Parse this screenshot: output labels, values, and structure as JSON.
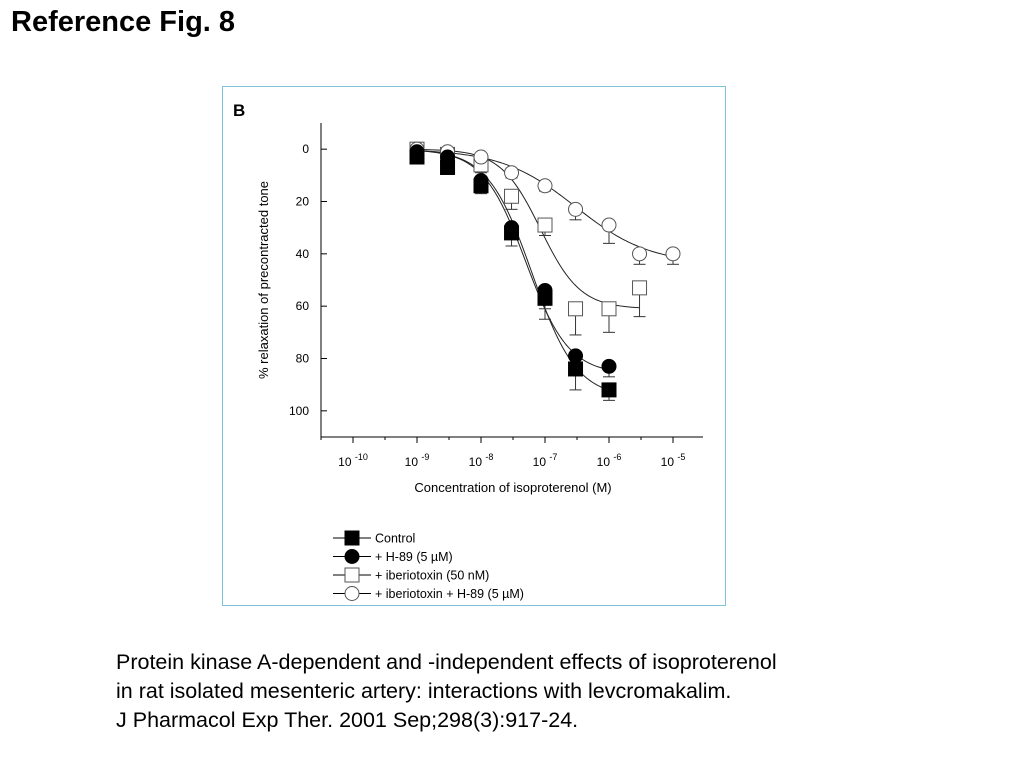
{
  "slide": {
    "title": "Reference Fig. 8",
    "caption": [
      "Protein kinase A-dependent and -independent effects of isoproterenol",
      "in rat isolated mesenteric artery: interactions with levcromakalim.",
      "J Pharmacol Exp Ther. 2001 Sep;298(3):917-24."
    ]
  },
  "chart_data": {
    "type": "line",
    "panel_label": "B",
    "title": "",
    "xlabel": "Concentration of isoproterenol (M)",
    "ylabel": "% relaxation of precontracted tone",
    "x_scale": "log",
    "xlim": [
      1e-10,
      1e-05
    ],
    "x_tick_values": [
      1e-10,
      1e-09,
      1e-08,
      1e-07,
      1e-06,
      1e-05
    ],
    "x_tick_labels": [
      {
        "base": "10",
        "exp": "-10"
      },
      {
        "base": "10",
        "exp": "-9"
      },
      {
        "base": "10",
        "exp": "-8"
      },
      {
        "base": "10",
        "exp": "-7"
      },
      {
        "base": "10",
        "exp": "-6"
      },
      {
        "base": "10",
        "exp": "-5"
      }
    ],
    "y_inverted": true,
    "ylim": [
      -10,
      110
    ],
    "y_ticks": [
      0,
      20,
      40,
      60,
      80,
      100
    ],
    "grid": false,
    "legend_position": "bottom-left",
    "series": [
      {
        "name": "Control",
        "marker": "filled-square",
        "x": [
          1e-09,
          3e-09,
          1e-08,
          3e-08,
          1e-07,
          3e-07,
          1e-06
        ],
        "y": [
          3,
          7,
          14,
          32,
          57,
          84,
          92
        ],
        "err": [
          0,
          2,
          3,
          5,
          8,
          8,
          4
        ],
        "fit": {
          "bottom": 0,
          "top": 95,
          "ec50": 6.3e-08,
          "hill": 1.25
        }
      },
      {
        "name": "+ H-89 (5 µM)",
        "marker": "filled-circle",
        "x": [
          1e-09,
          3e-09,
          1e-08,
          3e-08,
          1e-07,
          3e-07,
          1e-06
        ],
        "y": [
          1,
          3,
          12,
          30,
          54,
          79,
          83
        ],
        "err": [
          0,
          2,
          3,
          4,
          7,
          5,
          4
        ],
        "fit": {
          "bottom": 0,
          "top": 86,
          "ec50": 5e-08,
          "hill": 1.3
        }
      },
      {
        "name": "+ iberiotoxin (50 nM)",
        "marker": "open-square",
        "x": [
          1e-09,
          3e-09,
          1e-08,
          3e-08,
          1e-07,
          3e-07,
          1e-06,
          3e-06
        ],
        "y": [
          0,
          2,
          6,
          18,
          29,
          61,
          61,
          53
        ],
        "err": [
          0,
          2,
          3,
          5,
          4,
          10,
          9,
          11
        ],
        "fit": {
          "bottom": 0,
          "top": 61,
          "ec50": 8.5e-08,
          "hill": 1.4
        }
      },
      {
        "name": "+ iberiotoxin + H-89 (5 µM)",
        "marker": "open-circle",
        "x": [
          1e-09,
          3e-09,
          1e-08,
          3e-08,
          1e-07,
          3e-07,
          1e-06,
          3e-06,
          1e-05
        ],
        "y": [
          0,
          1,
          3,
          9,
          14,
          23,
          29,
          40,
          40
        ],
        "err": [
          0,
          1,
          1,
          2,
          2,
          4,
          7,
          4,
          4
        ],
        "fit": {
          "bottom": 0,
          "top": 44,
          "ec50": 3e-07,
          "hill": 0.75
        }
      }
    ]
  }
}
